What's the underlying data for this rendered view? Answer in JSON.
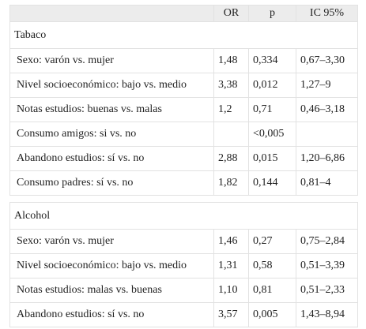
{
  "header": {
    "columns": [
      "OR",
      "p",
      "IC 95%"
    ]
  },
  "sections": [
    {
      "title": "Tabaco",
      "rows": [
        {
          "label": "Sexo: varón vs. mujer",
          "or": "1,48",
          "p": "0,334",
          "ic": "0,67–3,30"
        },
        {
          "label": "Nivel socioeconómico: bajo vs. medio",
          "or": "3,38",
          "p": "0,012",
          "ic": "1,27–9"
        },
        {
          "label": "Notas estudios: buenas vs. malas",
          "or": "1,2",
          "p": "0,71",
          "ic": "0,46–3,18"
        },
        {
          "label": "Consumo amigos: si vs. no",
          "p": "<0,005"
        },
        {
          "label": "Abandono estudios: sí vs. no",
          "or": "2,88",
          "p": "0,015",
          "ic": "1,20–6,86"
        },
        {
          "label": "Consumo padres: sí vs. no",
          "or": "1,82",
          "p": "0,144",
          "ic": "0,81–4"
        }
      ]
    },
    {
      "title": "Alcohol",
      "rows": [
        {
          "label": "Sexo: varón vs. mujer",
          "or": "1,46",
          "p": "0,27",
          "ic": "0,75–2,84"
        },
        {
          "label": "Nivel socioeconómico: bajo vs. medio",
          "or": "1,31",
          "p": "0,58",
          "ic": "0,51–3,39"
        },
        {
          "label": "Notas estudios: malas vs. buenas",
          "or": "1,10",
          "p": "0,81",
          "ic": "0,51–2,33"
        },
        {
          "label": "Abandono estudios: sí vs. no",
          "or": "3,57",
          "p": "0,005",
          "ic": "1,43–8,94"
        }
      ]
    }
  ]
}
